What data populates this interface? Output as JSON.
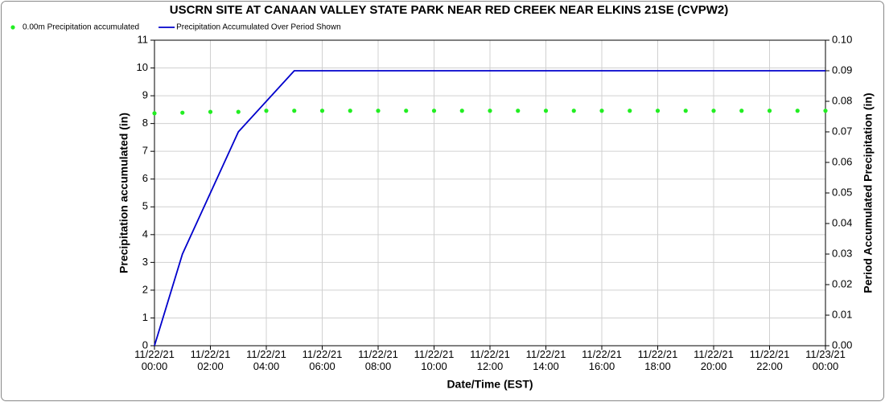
{
  "chart_data": {
    "type": "line",
    "title": "USCRN SITE AT CANAAN VALLEY STATE PARK NEAR RED CREEK NEAR ELKINS 21SE (CVPW2)",
    "xlabel": "Date/Time (EST)",
    "ylabel": "Precipitation accumulated (in)",
    "y2label": "Period Accumulated Precipitation (in)",
    "x": [
      0,
      1,
      2,
      3,
      4,
      5,
      6,
      7,
      8,
      9,
      10,
      11,
      12,
      13,
      14,
      15,
      16,
      17,
      18,
      19,
      20,
      21,
      22,
      23,
      24
    ],
    "xlim": [
      0,
      24
    ],
    "xticks": [
      {
        "value": 0,
        "label": "11/22/21 00:00"
      },
      {
        "value": 2,
        "label": "11/22/21 02:00"
      },
      {
        "value": 4,
        "label": "11/22/21 04:00"
      },
      {
        "value": 6,
        "label": "11/22/21 06:00"
      },
      {
        "value": 8,
        "label": "11/22/21 08:00"
      },
      {
        "value": 10,
        "label": "11/22/21 10:00"
      },
      {
        "value": 12,
        "label": "11/22/21 12:00"
      },
      {
        "value": 14,
        "label": "11/22/21 14:00"
      },
      {
        "value": 16,
        "label": "11/22/21 16:00"
      },
      {
        "value": 18,
        "label": "11/22/21 18:00"
      },
      {
        "value": 20,
        "label": "11/22/21 20:00"
      },
      {
        "value": 22,
        "label": "11/22/21 22:00"
      },
      {
        "value": 24,
        "label": "11/23/21 00:00"
      }
    ],
    "ylim": [
      0,
      11
    ],
    "yticks": [
      0,
      1,
      2,
      3,
      4,
      5,
      6,
      7,
      8,
      9,
      10,
      11
    ],
    "y2lim": [
      0,
      0.1
    ],
    "y2ticks": [
      {
        "value": 0,
        "label": "0.00"
      },
      {
        "value": 0.01,
        "label": "0.01"
      },
      {
        "value": 0.02,
        "label": "0.02"
      },
      {
        "value": 0.03,
        "label": "0.03"
      },
      {
        "value": 0.04,
        "label": "0.04"
      },
      {
        "value": 0.05,
        "label": "0.05"
      },
      {
        "value": 0.06,
        "label": "0.06"
      },
      {
        "value": 0.07,
        "label": "0.07"
      },
      {
        "value": 0.08,
        "label": "0.08"
      },
      {
        "value": 0.09,
        "label": "0.09"
      },
      {
        "value": 0.1,
        "label": "0.10"
      }
    ],
    "grid": true,
    "series": [
      {
        "name": "0.00m Precipitation accumulated",
        "color": "#22ee22",
        "style": "dots",
        "values": [
          8.37,
          8.39,
          8.42,
          8.42,
          8.46,
          8.46,
          8.46,
          8.46,
          8.46,
          8.46,
          8.46,
          8.46,
          8.46,
          8.46,
          8.46,
          8.46,
          8.46,
          8.46,
          8.46,
          8.46,
          8.46,
          8.46,
          8.46,
          8.46,
          8.46
        ]
      },
      {
        "name": "Precipitation Accumulated Over Period Shown",
        "color": "#0000cc",
        "style": "line",
        "axis": "y2",
        "values": [
          0,
          0.03,
          0.05,
          0.07,
          0.08,
          0.09,
          0.09,
          0.09,
          0.09,
          0.09,
          0.09,
          0.09,
          0.09,
          0.09,
          0.09,
          0.09,
          0.09,
          0.09,
          0.09,
          0.09,
          0.09,
          0.09,
          0.09,
          0.09,
          0.09
        ]
      }
    ]
  }
}
